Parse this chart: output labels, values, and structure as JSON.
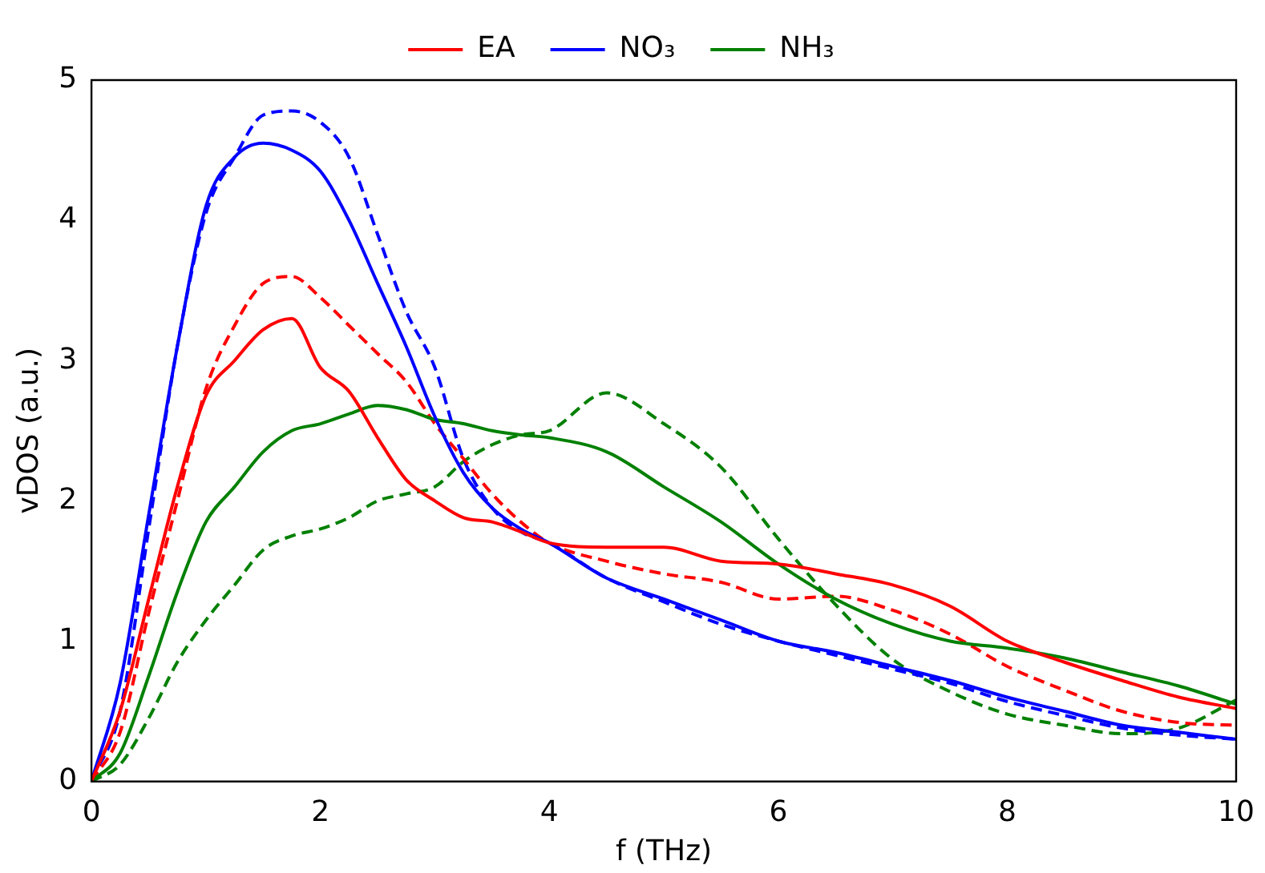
{
  "chart_data": {
    "type": "line",
    "xlabel": "f (THz)",
    "ylabel": "vDOS (a.u.)",
    "x": [
      0,
      0.25,
      0.5,
      0.75,
      1,
      1.25,
      1.5,
      1.75,
      2,
      2.25,
      2.5,
      2.75,
      3,
      3.25,
      3.5,
      3.75,
      4,
      4.5,
      5,
      5.5,
      6,
      6.5,
      7,
      7.5,
      8,
      8.5,
      9,
      9.5,
      10
    ],
    "xlim": [
      0,
      10
    ],
    "xticks": [
      0,
      2,
      4,
      6,
      8,
      10
    ],
    "ylim": [
      0,
      5
    ],
    "yticks": [
      0,
      1,
      2,
      3,
      4,
      5
    ],
    "grid": false,
    "legend": "top",
    "marker": "none",
    "series": [
      {
        "name": "EA",
        "color": "#ff0000",
        "line_style": "solid",
        "values": [
          0,
          0.5,
          1.3,
          2.1,
          2.75,
          3.0,
          3.22,
          3.3,
          2.95,
          2.78,
          2.45,
          2.15,
          2.0,
          1.88,
          1.85,
          1.78,
          1.7,
          1.67,
          1.67,
          1.57,
          1.55,
          1.48,
          1.4,
          1.25,
          1.0,
          0.85,
          0.72,
          0.6,
          0.52
        ]
      },
      {
        "name": "NO₃",
        "color": "#0000ff",
        "line_style": "solid",
        "values": [
          0,
          0.7,
          1.9,
          3.1,
          4.1,
          4.45,
          4.55,
          4.5,
          4.35,
          4.0,
          3.55,
          3.1,
          2.6,
          2.2,
          1.95,
          1.8,
          1.7,
          1.45,
          1.3,
          1.15,
          1.0,
          0.92,
          0.82,
          0.72,
          0.6,
          0.5,
          0.4,
          0.35,
          0.3
        ]
      },
      {
        "name": "NH₃",
        "color": "#008000",
        "line_style": "solid",
        "values": [
          0,
          0.2,
          0.75,
          1.35,
          1.85,
          2.1,
          2.35,
          2.5,
          2.55,
          2.62,
          2.68,
          2.65,
          2.58,
          2.55,
          2.5,
          2.47,
          2.45,
          2.35,
          2.1,
          1.85,
          1.55,
          1.3,
          1.12,
          1.0,
          0.95,
          0.88,
          0.78,
          0.68,
          0.55
        ]
      },
      {
        "color": "#ff0000",
        "line_style": "dashed",
        "values": [
          0,
          0.35,
          1.2,
          2.0,
          2.8,
          3.25,
          3.55,
          3.6,
          3.45,
          3.25,
          3.05,
          2.85,
          2.55,
          2.3,
          2.05,
          1.85,
          1.7,
          1.57,
          1.48,
          1.42,
          1.3,
          1.32,
          1.22,
          1.05,
          0.82,
          0.65,
          0.5,
          0.42,
          0.4
        ]
      },
      {
        "color": "#0000ff",
        "line_style": "dashed",
        "values": [
          0,
          0.5,
          1.8,
          3.1,
          4.05,
          4.45,
          4.75,
          4.78,
          4.7,
          4.45,
          3.9,
          3.35,
          2.95,
          2.3,
          1.95,
          1.78,
          1.7,
          1.45,
          1.28,
          1.12,
          1.0,
          0.9,
          0.8,
          0.7,
          0.57,
          0.47,
          0.38,
          0.33,
          0.3
        ]
      },
      {
        "color": "#008000",
        "line_style": "dashed",
        "values": [
          0,
          0.12,
          0.45,
          0.85,
          1.15,
          1.4,
          1.65,
          1.75,
          1.8,
          1.88,
          2.0,
          2.05,
          2.1,
          2.28,
          2.4,
          2.47,
          2.5,
          2.77,
          2.55,
          2.24,
          1.73,
          1.26,
          0.87,
          0.64,
          0.48,
          0.4,
          0.34,
          0.38,
          0.58
        ]
      }
    ]
  }
}
